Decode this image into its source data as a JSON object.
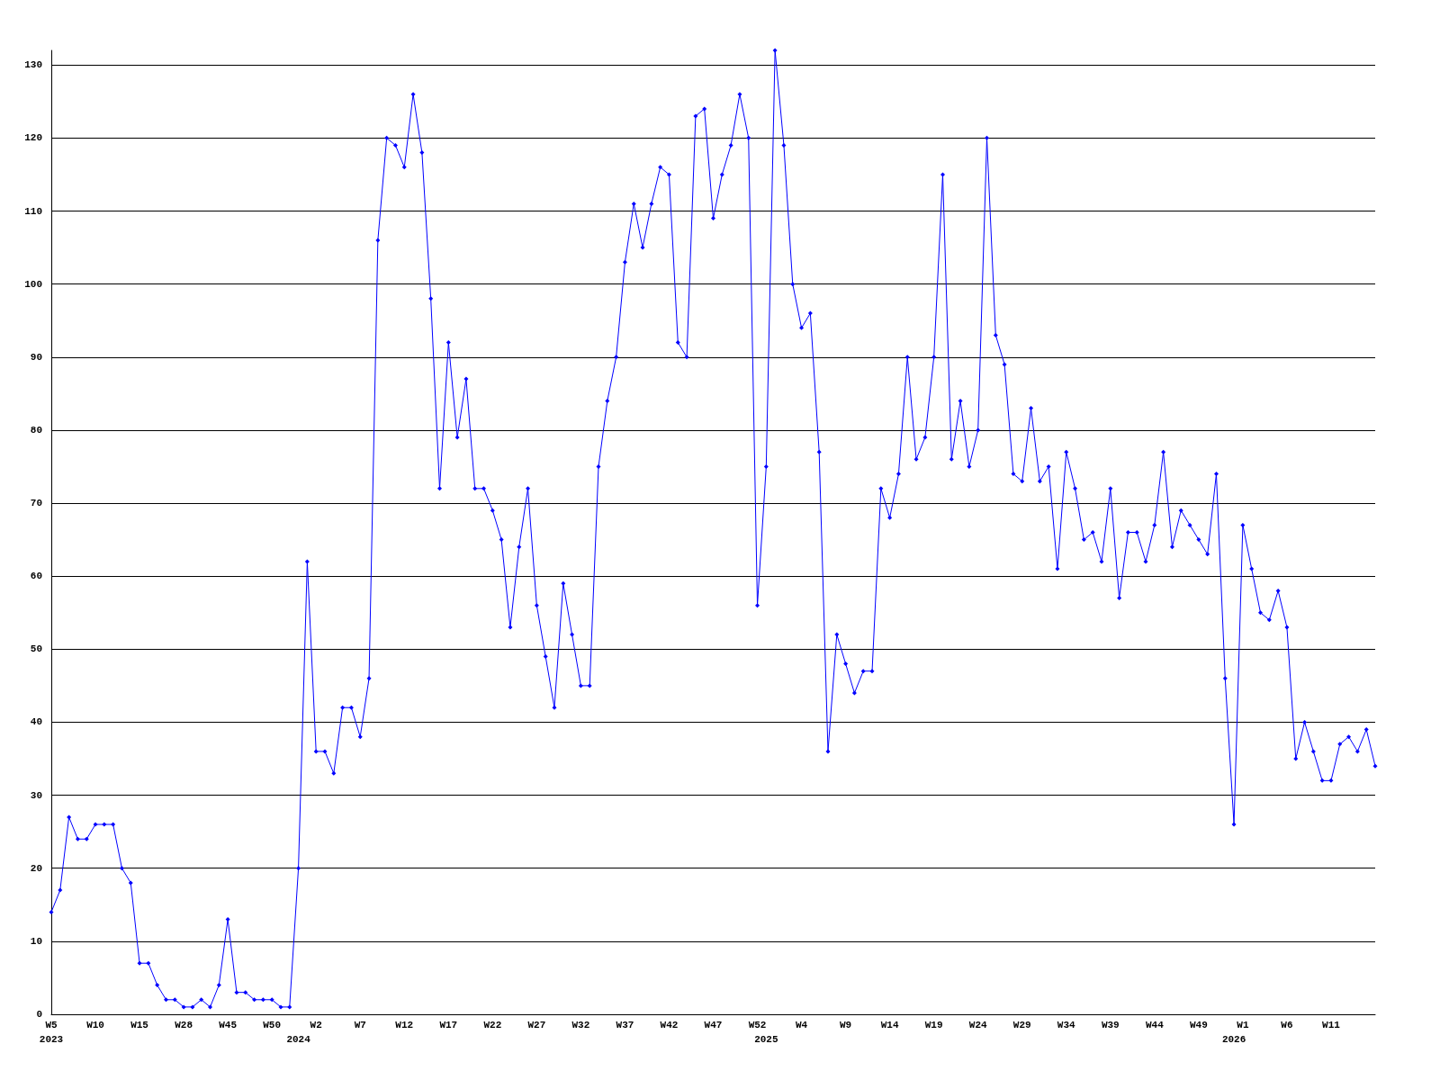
{
  "chart_data": {
    "type": "line",
    "categories": [
      "W5\n2023",
      null,
      null,
      null,
      null,
      "W10",
      null,
      null,
      null,
      null,
      "W15",
      null,
      null,
      null,
      null,
      "W28",
      null,
      null,
      null,
      null,
      "W45",
      null,
      null,
      null,
      null,
      "W50",
      null,
      null,
      "\n2024",
      null,
      "W2",
      null,
      null,
      null,
      null,
      "W7",
      null,
      null,
      null,
      null,
      "W12",
      null,
      null,
      null,
      null,
      "W17",
      null,
      null,
      null,
      null,
      "W22",
      null,
      null,
      null,
      null,
      "W27",
      null,
      null,
      null,
      null,
      "W32",
      null,
      null,
      null,
      null,
      "W37",
      null,
      null,
      null,
      null,
      "W42",
      null,
      null,
      null,
      null,
      "W47",
      null,
      null,
      null,
      null,
      "W52",
      "\n2025",
      null,
      null,
      null,
      "W4",
      null,
      null,
      null,
      null,
      "W9",
      null,
      null,
      null,
      null,
      "W14",
      null,
      null,
      null,
      null,
      "W19",
      null,
      null,
      null,
      null,
      "W24",
      null,
      null,
      null,
      null,
      "W29",
      null,
      null,
      null,
      null,
      "W34",
      null,
      null,
      null,
      null,
      "W39",
      null,
      null,
      null,
      null,
      "W44",
      null,
      null,
      null,
      null,
      "W49",
      null,
      null,
      null,
      "\n2026",
      "W1",
      null,
      null,
      null,
      null,
      "W6",
      null,
      null,
      null,
      null,
      "W11",
      null,
      null,
      null,
      null,
      null
    ],
    "series": [
      {
        "color": "#0000ff",
        "values": [
          14,
          17,
          27,
          24,
          24,
          26,
          26,
          26,
          20,
          18,
          7,
          7,
          4,
          2,
          2,
          1,
          1,
          2,
          1,
          4,
          13,
          3,
          3,
          2,
          2,
          2,
          1,
          1,
          20,
          62,
          36,
          36,
          33,
          42,
          42,
          38,
          46,
          106,
          120,
          119,
          116,
          126,
          118,
          98,
          72,
          92,
          79,
          87,
          72,
          72,
          69,
          65,
          53,
          64,
          72,
          56,
          49,
          42,
          59,
          52,
          45,
          45,
          75,
          84,
          90,
          103,
          111,
          105,
          111,
          116,
          115,
          92,
          90,
          123,
          124,
          109,
          115,
          119,
          126,
          120,
          56,
          75,
          132,
          119,
          100,
          94,
          96,
          77,
          36,
          52,
          48,
          44,
          47,
          47,
          72,
          68,
          74,
          90,
          76,
          79,
          90,
          115,
          76,
          84,
          75,
          80,
          120,
          93,
          89,
          74,
          73,
          83,
          73,
          75,
          61,
          77,
          72,
          65,
          66,
          62,
          72,
          57,
          66,
          66,
          62,
          67,
          77,
          64,
          69,
          67,
          65,
          63,
          74,
          46,
          26,
          67,
          61,
          55,
          54,
          58,
          53,
          35,
          40,
          36,
          32,
          32,
          37,
          38,
          36,
          39,
          34
        ]
      }
    ],
    "ylim": [
      0,
      132
    ],
    "yticks": [
      0,
      10,
      20,
      30,
      40,
      50,
      60,
      70,
      80,
      90,
      100,
      110,
      120,
      130
    ],
    "grid": "y",
    "marker": "diamond",
    "line_style": "solid"
  }
}
